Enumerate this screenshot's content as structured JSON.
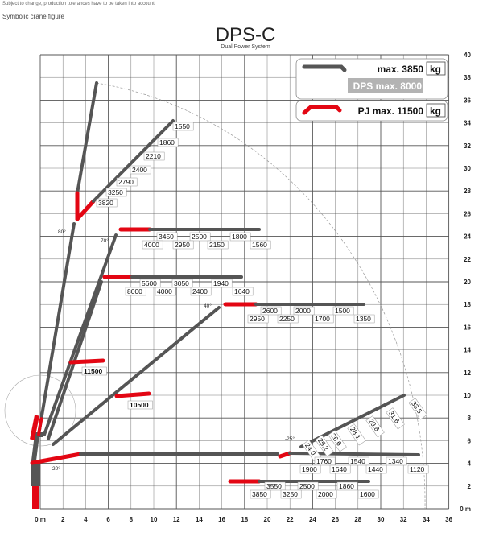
{
  "header": {
    "note": "Subject to change, production tolerances have to be taken into account.",
    "caption": "Symbolic crane figure",
    "title": "DPS-C",
    "subtitle": "Dual Power System"
  },
  "axes": {
    "x_ticks": [
      "0 m",
      "2",
      "4",
      "6",
      "8",
      "10",
      "12",
      "14",
      "16",
      "18",
      "20",
      "22",
      "24",
      "26",
      "28",
      "30",
      "32",
      "34",
      "36"
    ],
    "y_ticks": [
      "0 m",
      "2",
      "4",
      "6",
      "8",
      "10",
      "12",
      "14",
      "16",
      "18",
      "20",
      "22",
      "24",
      "26",
      "28",
      "30",
      "32",
      "34",
      "36",
      "38",
      "40"
    ]
  },
  "legend": {
    "max_label": "max. 3850",
    "unit": "kg",
    "dps_label": "DPS max. 8000",
    "pj_label": "PJ max. 11500",
    "colors": {
      "boom": "#555555",
      "jib": "#e30613",
      "dps_bg": "#b3b3b3"
    }
  },
  "angles": [
    "80°",
    "70°",
    "40°",
    "-25°",
    "20°"
  ],
  "loads": {
    "top": [
      "1550",
      "1860",
      "2210",
      "2400",
      "2790",
      "3250",
      "3820"
    ],
    "row24_top": [
      "3450",
      "2500",
      "1800"
    ],
    "row24_bottom": [
      "4000",
      "2950",
      "2150",
      "1560"
    ],
    "row20_top": [
      "5600",
      "3050",
      "1940"
    ],
    "row20_bottom": [
      "8000",
      "4000",
      "2400",
      "1640"
    ],
    "row18_top": [
      "2600",
      "2000",
      "1500"
    ],
    "row18_bottom": [
      "2950",
      "2250",
      "1700",
      "1350"
    ],
    "row12": "11500",
    "row10": "10500",
    "diag": [
      "24.0",
      "25.2",
      "26.6",
      "28.1",
      "29.8",
      "31.6",
      "33.5"
    ],
    "row4_top": [
      "1760",
      "1540",
      "1340"
    ],
    "row4_bottom": [
      "1900",
      "1640",
      "1440",
      "1120"
    ],
    "row2_top": [
      "3550",
      "2500",
      "1860"
    ],
    "row2_bottom": [
      "3850",
      "3250",
      "2000",
      "1600"
    ]
  }
}
